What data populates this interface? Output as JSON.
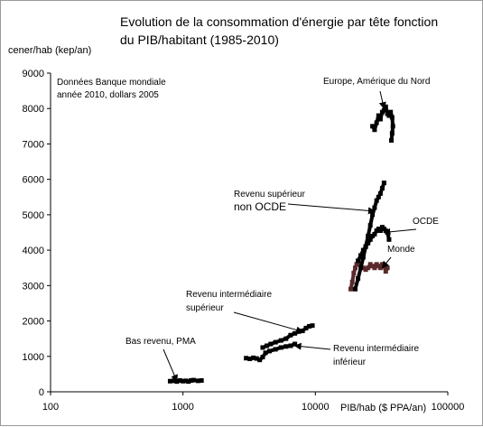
{
  "chart_data": {
    "type": "scatter",
    "title_lines": [
      "Evolution de la consommation d'énergie par tête fonction",
      "du PIB/habitant (1985-2010)"
    ],
    "ylabel": "cener/hab (kep/an)",
    "xlabel": "PIB/hab ($ PPA/an)",
    "x_scale": "log",
    "xlim": [
      100,
      100000
    ],
    "ylim": [
      0,
      9000
    ],
    "x_ticks": [
      100,
      1000,
      10000,
      100000
    ],
    "x_tick_labels": [
      "100",
      "1000",
      "10000",
      "100000"
    ],
    "y_ticks": [
      0,
      1000,
      2000,
      3000,
      4000,
      5000,
      6000,
      7000,
      8000,
      9000
    ],
    "y_tick_labels": [
      "0",
      "1000",
      "2000",
      "3000",
      "4000",
      "5000",
      "6000",
      "7000",
      "8000",
      "9000"
    ],
    "grid": false,
    "legend": "none",
    "note_lines": [
      "Données Banque mondiale",
      "année 2010, dollars 2005"
    ],
    "series": [
      {
        "name": "Bas revenu, PMA",
        "color": "#000000",
        "points": [
          [
            800,
            300
          ],
          [
            850,
            310
          ],
          [
            900,
            290
          ],
          [
            950,
            320
          ],
          [
            1000,
            300
          ],
          [
            1050,
            310
          ],
          [
            1100,
            290
          ],
          [
            1150,
            320
          ],
          [
            1200,
            330
          ],
          [
            1300,
            310
          ],
          [
            1380,
            320
          ]
        ]
      },
      {
        "name": "Revenu intermédiaire inférieur",
        "color": "#000000",
        "points": [
          [
            3000,
            950
          ],
          [
            3200,
            930
          ],
          [
            3400,
            960
          ],
          [
            3600,
            940
          ],
          [
            3800,
            900
          ],
          [
            4000,
            980
          ],
          [
            4200,
            1100
          ],
          [
            4500,
            1150
          ],
          [
            5000,
            1200
          ],
          [
            5500,
            1250
          ],
          [
            6000,
            1280
          ],
          [
            6500,
            1300
          ],
          [
            7000,
            1350
          ]
        ]
      },
      {
        "name": "Revenu intermédiaire supérieur",
        "color": "#000000",
        "points": [
          [
            4000,
            1250
          ],
          [
            4300,
            1300
          ],
          [
            4600,
            1350
          ],
          [
            5000,
            1400
          ],
          [
            5500,
            1450
          ],
          [
            6000,
            1500
          ],
          [
            6500,
            1600
          ],
          [
            7000,
            1650
          ],
          [
            7500,
            1700
          ],
          [
            8000,
            1720
          ],
          [
            8500,
            1800
          ],
          [
            9000,
            1850
          ],
          [
            9500,
            1870
          ]
        ]
      },
      {
        "name": "Monde",
        "color": "#5a2a2a",
        "points": [
          [
            18500,
            2900
          ],
          [
            19000,
            3100
          ],
          [
            19500,
            3350
          ],
          [
            20000,
            3500
          ],
          [
            20500,
            3600
          ],
          [
            21000,
            3650
          ],
          [
            22000,
            3550
          ],
          [
            23000,
            3500
          ],
          [
            24000,
            3450
          ],
          [
            25000,
            3500
          ],
          [
            26000,
            3600
          ],
          [
            27000,
            3550
          ],
          [
            28000,
            3500
          ],
          [
            29000,
            3600
          ],
          [
            30000,
            3550
          ],
          [
            31000,
            3500
          ],
          [
            32000,
            3600
          ],
          [
            33000,
            3550
          ],
          [
            34000,
            3400
          ],
          [
            35000,
            3500
          ]
        ]
      },
      {
        "name": "OCDE",
        "color": "#000000",
        "points": [
          [
            21000,
            3700
          ],
          [
            22000,
            3850
          ],
          [
            23000,
            4000
          ],
          [
            24000,
            4100
          ],
          [
            25000,
            4200
          ],
          [
            26000,
            4300
          ],
          [
            27000,
            4400
          ],
          [
            28000,
            4450
          ],
          [
            29000,
            4550
          ],
          [
            30000,
            4600
          ],
          [
            31000,
            4550
          ],
          [
            32000,
            4650
          ],
          [
            33000,
            4600
          ],
          [
            34000,
            4550
          ],
          [
            35000,
            4500
          ],
          [
            36000,
            4300
          ]
        ]
      },
      {
        "name": "Revenu supérieur non OCDE",
        "color": "#000000",
        "points": [
          [
            20000,
            2900
          ],
          [
            21000,
            3200
          ],
          [
            22000,
            3500
          ],
          [
            23000,
            3800
          ],
          [
            24000,
            4100
          ],
          [
            25000,
            4400
          ],
          [
            26000,
            4700
          ],
          [
            27000,
            5000
          ],
          [
            28000,
            5200
          ],
          [
            29000,
            5400
          ],
          [
            30000,
            5500
          ],
          [
            31000,
            5600
          ],
          [
            32000,
            5750
          ],
          [
            33000,
            5900
          ]
        ]
      },
      {
        "name": "Europe, Amérique du Nord",
        "color": "#000000",
        "points": [
          [
            27000,
            7500
          ],
          [
            28000,
            7400
          ],
          [
            29000,
            7600
          ],
          [
            30000,
            7800
          ],
          [
            31000,
            7700
          ],
          [
            32000,
            7900
          ],
          [
            33000,
            7950
          ],
          [
            34000,
            8050
          ],
          [
            35000,
            7850
          ],
          [
            36000,
            7800
          ],
          [
            37000,
            7900
          ],
          [
            38000,
            7750
          ],
          [
            38500,
            7500
          ],
          [
            38000,
            7300
          ],
          [
            37500,
            7100
          ]
        ]
      }
    ],
    "annotations": [
      {
        "lines": [
          "Europe, Amérique du Nord"
        ],
        "arrow_to": [
          33000,
          8000
        ]
      },
      {
        "lines": [
          "Revenu supérieur",
          "non OCDE"
        ],
        "arrow_to": [
          28000,
          5100
        ]
      },
      {
        "lines": [
          "OCDE"
        ],
        "arrow_to": [
          33000,
          4500
        ]
      },
      {
        "lines": [
          "Monde"
        ],
        "arrow_to": [
          32000,
          3500
        ]
      },
      {
        "lines": [
          "Revenu intermédiaire",
          "supérieur"
        ],
        "arrow_to": [
          8000,
          1700
        ]
      },
      {
        "lines": [
          "Revenu intermédiaire",
          "inférieur"
        ],
        "arrow_to": [
          7000,
          1300
        ]
      },
      {
        "lines": [
          "Bas revenu, PMA"
        ],
        "arrow_to": [
          900,
          300
        ]
      }
    ]
  }
}
